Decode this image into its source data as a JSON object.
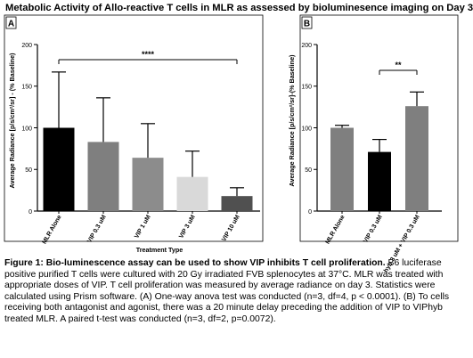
{
  "figure_title": "Metabolic Activity of Allo-reactive T cells in MLR as assessed by bioluminesence imaging on Day 3",
  "caption": {
    "bold": "Figure 1: Bio-luminescence assay can be used to show VIP inhibits T cell proliferation.",
    "body": " B6 luciferase positive purified T cells were cultured with 20 Gy irradiated FVB splenocytes at 37°C. MLR was treated with appropriate doses of VIP. T cell proliferation was measured by average radiance on day 3. Statistics were calculated using Prism software.  (A) One-way anova test was conducted (n=3, df=4, p < 0.0001). (B) To cells receiving both antagonist and agonist, there was a 20 minute delay preceding the addition of VIP to VIPhyb treated MLR. A paired t-test was conducted (n=3, df=2, p=0.0072)."
  },
  "chart_data": [
    {
      "type": "bar",
      "panel_label": "A",
      "categories": [
        "MLR Alone",
        "VIP 0.3 uM",
        "VIP 1 uM",
        "VIP 3 uM",
        "VIP 10 uM"
      ],
      "values": [
        100,
        83,
        64,
        41,
        18
      ],
      "errors": [
        67,
        53,
        41,
        31,
        10
      ],
      "bar_colors": [
        "#000000",
        "#7f7f7f",
        "#8c8c8c",
        "#d9d9d9",
        "#505050"
      ],
      "ylabel": "Average Radiance [p/s/cm²/sr] - (% Baseline)",
      "xlabel": "Treatment Type",
      "ylim": [
        0,
        200
      ],
      "yticks": [
        0,
        50,
        100,
        150,
        200
      ],
      "significance": {
        "from": 0,
        "to": 4,
        "label": "****"
      }
    },
    {
      "type": "bar",
      "panel_label": "B",
      "categories": [
        "MLR Alone",
        "VIP 0.3 uM",
        "hyb 3 uM + VIP 0.3 uM"
      ],
      "values": [
        100,
        71,
        126
      ],
      "errors": [
        3,
        15,
        17
      ],
      "bar_colors": [
        "#7f7f7f",
        "#000000",
        "#7f7f7f"
      ],
      "ylabel": "Average Radiance [p/s/cm²/sr]-(% Baseline)",
      "ylim": [
        0,
        200
      ],
      "yticks": [
        0,
        50,
        100,
        150,
        200
      ],
      "significance": {
        "from": 1,
        "to": 2,
        "label": "**"
      }
    }
  ]
}
